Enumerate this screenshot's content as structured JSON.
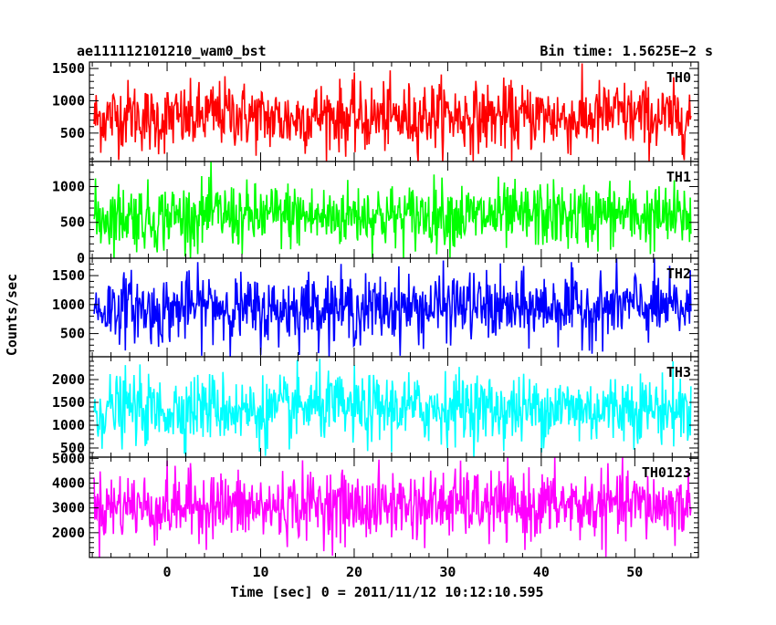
{
  "header": {
    "left_title": "ae111112101210_wam0_bst",
    "right_title": "Bin time: 1.5625E−2 s"
  },
  "chart_data": {
    "type": "line",
    "title": "ae111112101210_wam0_bst",
    "subtitle": "Bin time: 1.5625E−2 s",
    "xlabel": "Time [sec] 0 = 2011/11/12 10:12:10.595",
    "ylabel": "Counts/sec",
    "xlim": [
      -8.3,
      56.8
    ],
    "data_x_range": [
      -7.8,
      56.0
    ],
    "x_ticks": [
      0,
      10,
      20,
      30,
      40,
      50
    ],
    "x_tick_labels": [
      "0",
      "10",
      "20",
      "30",
      "40",
      "50"
    ],
    "grid": false,
    "legend": "none",
    "panels": [
      {
        "name": "TH0",
        "color": "#ff0000",
        "ylim": [
          60,
          1600
        ],
        "y_ticks": [
          500,
          1000,
          1500
        ],
        "y_tick_labels": [
          "500",
          "1000",
          "1500"
        ],
        "values": [
          720,
          760,
          800,
          680,
          740,
          700,
          780,
          820,
          760,
          730,
          700,
          750,
          790,
          740,
          710,
          760,
          720,
          770,
          800,
          750,
          730,
          760,
          720,
          780,
          740,
          700,
          760,
          800,
          770,
          740,
          720,
          760
        ]
      },
      {
        "name": "TH1",
        "color": "#00ff00",
        "ylim": [
          0,
          1350
        ],
        "y_ticks": [
          0,
          500,
          1000
        ],
        "y_tick_labels": [
          "0",
          "500",
          "1000"
        ],
        "values": [
          560,
          590,
          610,
          540,
          600,
          570,
          620,
          600,
          560,
          590,
          610,
          580,
          560,
          600,
          620,
          590,
          560,
          600,
          630,
          590,
          570,
          600,
          560,
          610,
          590,
          570,
          600,
          620,
          590,
          570,
          560,
          600
        ]
      },
      {
        "name": "TH2",
        "color": "#0000ff",
        "ylim": [
          100,
          1800
        ],
        "y_ticks": [
          500,
          1000,
          1500
        ],
        "y_tick_labels": [
          "500",
          "1000",
          "1500"
        ],
        "values": [
          900,
          940,
          980,
          860,
          920,
          960,
          1000,
          950,
          900,
          880,
          920,
          960,
          990,
          940,
          900,
          940,
          970,
          920,
          960,
          1000,
          960,
          930,
          900,
          950,
          980,
          940,
          910,
          960,
          990,
          950,
          920,
          940
        ]
      },
      {
        "name": "TH3",
        "color": "#00ffff",
        "ylim": [
          300,
          2500
        ],
        "y_ticks": [
          500,
          1000,
          1500,
          2000
        ],
        "y_tick_labels": [
          "500",
          "1000",
          "1500",
          "2000"
        ],
        "values": [
          1300,
          1360,
          1400,
          1280,
          1340,
          1380,
          1420,
          1360,
          1300,
          1280,
          1340,
          1380,
          1420,
          1360,
          1320,
          1360,
          1400,
          1340,
          1380,
          1440,
          1380,
          1340,
          1320,
          1370,
          1410,
          1360,
          1330,
          1380,
          1420,
          1370,
          1340,
          1360
        ]
      },
      {
        "name": "TH0123",
        "color": "#ff00ff",
        "ylim": [
          1000,
          5050
        ],
        "y_ticks": [
          2000,
          3000,
          4000,
          5000
        ],
        "y_tick_labels": [
          "2000",
          "3000",
          "4000",
          "5000"
        ],
        "values": [
          3000,
          3080,
          3150,
          2950,
          3050,
          3100,
          3180,
          3080,
          3000,
          2980,
          3060,
          3120,
          3180,
          3080,
          3020,
          3080,
          3140,
          3060,
          3120,
          3200,
          3120,
          3060,
          3020,
          3090,
          3150,
          3080,
          3040,
          3100,
          3160,
          3090,
          3050,
          3080
        ]
      }
    ]
  }
}
